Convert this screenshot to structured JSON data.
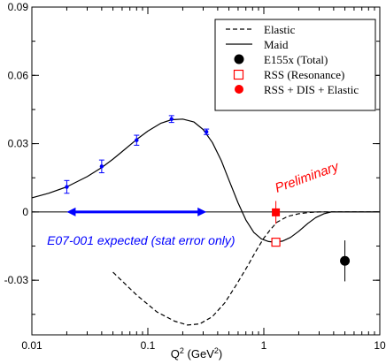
{
  "chart_data": {
    "type": "line",
    "xscale": "log",
    "xlim": [
      0.01,
      10
    ],
    "ylim": [
      -0.054,
      0.09
    ],
    "xlabel": "Q",
    "xlabel_sup": "2",
    "xlabel_unit_open": " (GeV",
    "xlabel_unit_sup": "2",
    "xlabel_unit_close": ")",
    "x_ticks": [
      {
        "value": 0.01,
        "label": "0.01"
      },
      {
        "value": 0.1,
        "label": "0.1"
      },
      {
        "value": 1,
        "label": "1"
      },
      {
        "value": 10,
        "label": "10"
      }
    ],
    "y_ticks": [
      {
        "value": 0.09,
        "label": "0.09"
      },
      {
        "value": 0.06,
        "label": "0.06"
      },
      {
        "value": 0.03,
        "label": "0.03"
      },
      {
        "value": 0,
        "label": "0"
      },
      {
        "value": -0.03,
        "label": "-0.03"
      }
    ],
    "grid": false,
    "legend_position": "top-right",
    "series": [
      {
        "name": "Elastic",
        "style": "dashed",
        "color": "#000000",
        "points": [
          [
            0.05,
            -0.0265
          ],
          [
            0.08,
            -0.0365
          ],
          [
            0.12,
            -0.044
          ],
          [
            0.17,
            -0.048
          ],
          [
            0.22,
            -0.0497
          ],
          [
            0.28,
            -0.0492
          ],
          [
            0.36,
            -0.046
          ],
          [
            0.46,
            -0.04
          ],
          [
            0.58,
            -0.032
          ],
          [
            0.72,
            -0.024
          ],
          [
            0.86,
            -0.017
          ],
          [
            1.0,
            -0.0115
          ],
          [
            1.15,
            -0.0075
          ],
          [
            1.3,
            -0.0045
          ],
          [
            1.6,
            -0.002
          ],
          [
            2.0,
            -0.0008
          ],
          [
            2.5,
            -0.0002
          ],
          [
            3.0,
            0.0
          ],
          [
            10,
            0.0
          ]
        ]
      },
      {
        "name": "Maid",
        "style": "solid",
        "color": "#000000",
        "points": [
          [
            0.01,
            0.0062
          ],
          [
            0.014,
            0.0082
          ],
          [
            0.02,
            0.011
          ],
          [
            0.03,
            0.0155
          ],
          [
            0.04,
            0.0195
          ],
          [
            0.05,
            0.0232
          ],
          [
            0.06,
            0.0265
          ],
          [
            0.08,
            0.0318
          ],
          [
            0.1,
            0.0355
          ],
          [
            0.13,
            0.039
          ],
          [
            0.16,
            0.0405
          ],
          [
            0.2,
            0.0408
          ],
          [
            0.25,
            0.0395
          ],
          [
            0.3,
            0.0362
          ],
          [
            0.36,
            0.0305
          ],
          [
            0.43,
            0.0225
          ],
          [
            0.5,
            0.014
          ],
          [
            0.6,
            0.004
          ],
          [
            0.7,
            -0.0035
          ],
          [
            0.82,
            -0.009
          ],
          [
            0.95,
            -0.0118
          ],
          [
            1.1,
            -0.013
          ],
          [
            1.25,
            -0.0133
          ],
          [
            1.45,
            -0.0128
          ],
          [
            1.7,
            -0.0112
          ],
          [
            2.0,
            -0.0085
          ],
          [
            2.4,
            -0.005
          ],
          [
            2.8,
            -0.0025
          ],
          [
            3.3,
            -0.0008
          ],
          [
            3.8,
            0.0
          ],
          [
            10,
            0.0
          ]
        ]
      },
      {
        "name": "E155x (Total)",
        "style": "marker",
        "marker": "filled-circle",
        "color": "#000000",
        "points": [
          {
            "x": 5.0,
            "y": -0.0215,
            "err": 0.009
          }
        ]
      },
      {
        "name": "RSS  (Resonance)",
        "style": "marker",
        "marker": "open-square",
        "color": "#ff0000",
        "points": [
          {
            "x": 1.27,
            "y": -0.0133,
            "err": 0.0
          }
        ]
      },
      {
        "name": "RSS + DIS + Elastic",
        "style": "marker",
        "marker": "filled-square",
        "color": "#ff0000",
        "points": [
          {
            "x": 1.27,
            "y": -0.0002,
            "err": 0.005
          }
        ]
      },
      {
        "style": "marker",
        "marker": "filled-dot",
        "color": "#0000ff",
        "points": [
          {
            "x": 0.02,
            "y": 0.011,
            "err": 0.0028
          },
          {
            "x": 0.04,
            "y": 0.02,
            "err": 0.0028
          },
          {
            "x": 0.08,
            "y": 0.0315,
            "err": 0.0022
          },
          {
            "x": 0.16,
            "y": 0.0408,
            "err": 0.0015
          },
          {
            "x": 0.32,
            "y": 0.0352,
            "err": 0.0012
          }
        ]
      }
    ],
    "range_arrow": {
      "x_start": 0.02,
      "x_end": 0.32,
      "y": 0.0,
      "color": "#0000ff"
    },
    "annotations": [
      {
        "text": "Preliminary",
        "x": 1.3,
        "y": 0.0085,
        "color": "#ff0000"
      },
      {
        "text": "E07-001 expected (stat error only)",
        "x": 0.0135,
        "y": -0.0145,
        "color": "#0000ff"
      }
    ]
  }
}
